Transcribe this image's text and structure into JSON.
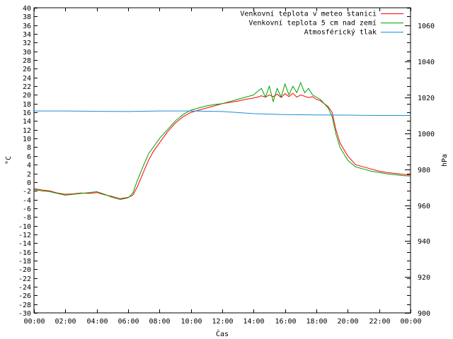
{
  "chart_data": {
    "type": "line",
    "xlabel": "Čas",
    "ylabel": "°C",
    "y2label": "hPa",
    "legend_position": "top-right",
    "grid": false,
    "x_ticks": [
      "00:00",
      "02:00",
      "04:00",
      "06:00",
      "08:00",
      "10:00",
      "12:00",
      "14:00",
      "16:00",
      "18:00",
      "20:00",
      "22:00",
      "00:00"
    ],
    "xlim_hours": [
      0,
      24
    ],
    "ylim": [
      -30,
      40
    ],
    "y_tick_step": 2,
    "y2lim": [
      900,
      1070
    ],
    "y2_ticks": [
      900,
      920,
      940,
      960,
      980,
      1000,
      1020,
      1040,
      1060
    ],
    "series": [
      {
        "name": "Venkovní teplota v meteo stanici",
        "color": "#ff0000",
        "axis": "left",
        "x": [
          0,
          0.5,
          1,
          1.5,
          2,
          2.5,
          3,
          3.5,
          4,
          4.5,
          5,
          5.5,
          6,
          6.3,
          6.6,
          7,
          7.3,
          7.6,
          8,
          8.5,
          9,
          9.5,
          10,
          10.5,
          11,
          11.5,
          12,
          12.5,
          13,
          13.5,
          14,
          14.25,
          14.5,
          14.75,
          15,
          15.25,
          15.5,
          15.75,
          16,
          16.25,
          16.5,
          16.75,
          17,
          17.25,
          17.5,
          17.75,
          18,
          18.25,
          18.5,
          18.75,
          19,
          19.25,
          19.5,
          20,
          20.5,
          21,
          21.5,
          22,
          22.5,
          23,
          23.5,
          24
        ],
        "y": [
          -1.5,
          -1.8,
          -2,
          -2.5,
          -2.8,
          -2.7,
          -2.5,
          -2.6,
          -2.4,
          -2.9,
          -3.3,
          -3.8,
          -3.5,
          -3,
          -1,
          2.5,
          5,
          7,
          9,
          11.5,
          13.5,
          15,
          16,
          16.5,
          17,
          17.5,
          18,
          18.3,
          18.6,
          19,
          19.3,
          19.5,
          19.8,
          19.5,
          20,
          19.6,
          20.2,
          19.4,
          20.3,
          19.6,
          20.4,
          19.5,
          20,
          19.7,
          19.4,
          19.6,
          19,
          18.7,
          18,
          17.3,
          16,
          12,
          9,
          6,
          4,
          3.5,
          3,
          2.5,
          2.2,
          2,
          1.8,
          1.6
        ]
      },
      {
        "name": "Venkovní teplota 5 cm nad zemí",
        "color": "#00a000",
        "axis": "left",
        "x": [
          0,
          0.5,
          1,
          1.5,
          2,
          2.5,
          3,
          3.5,
          4,
          4.5,
          5,
          5.5,
          6,
          6.3,
          6.6,
          7,
          7.3,
          7.6,
          8,
          8.5,
          9,
          9.5,
          10,
          10.5,
          11,
          11.5,
          12,
          12.5,
          13,
          13.5,
          14,
          14.25,
          14.5,
          14.75,
          15,
          15.25,
          15.5,
          15.75,
          16,
          16.25,
          16.5,
          16.75,
          17,
          17.25,
          17.5,
          17.75,
          18,
          18.25,
          18.5,
          18.75,
          19,
          19.25,
          19.5,
          20,
          20.5,
          21,
          21.5,
          22,
          22.5,
          23,
          23.5,
          24
        ],
        "y": [
          -1.7,
          -2,
          -2.2,
          -2.6,
          -3,
          -2.8,
          -2.6,
          -2.4,
          -2.2,
          -2.8,
          -3.5,
          -4,
          -3.6,
          -2.5,
          0.5,
          4,
          6.5,
          8,
          10,
          12,
          14,
          15.5,
          16.5,
          17,
          17.5,
          17.8,
          18,
          18.5,
          19,
          19.5,
          20,
          20.8,
          21.5,
          19.5,
          22,
          18.5,
          21.5,
          19.5,
          22.5,
          20,
          22,
          20.5,
          22.8,
          20.5,
          21.5,
          20,
          19.5,
          19,
          18,
          17,
          15,
          11,
          8,
          5,
          3.5,
          3,
          2.5,
          2.2,
          1.9,
          1.7,
          1.5,
          1.4
        ]
      },
      {
        "name": "Atmosférický tlak",
        "color": "#1a8fd6",
        "axis": "right",
        "x": [
          0,
          2,
          4,
          6,
          8,
          10,
          12,
          14,
          16,
          18,
          20,
          22,
          24
        ],
        "y": [
          1012.5,
          1012.5,
          1012.3,
          1012.2,
          1012.5,
          1012.5,
          1012.2,
          1011,
          1010.5,
          1010.3,
          1010.2,
          1010,
          1010
        ]
      }
    ]
  }
}
